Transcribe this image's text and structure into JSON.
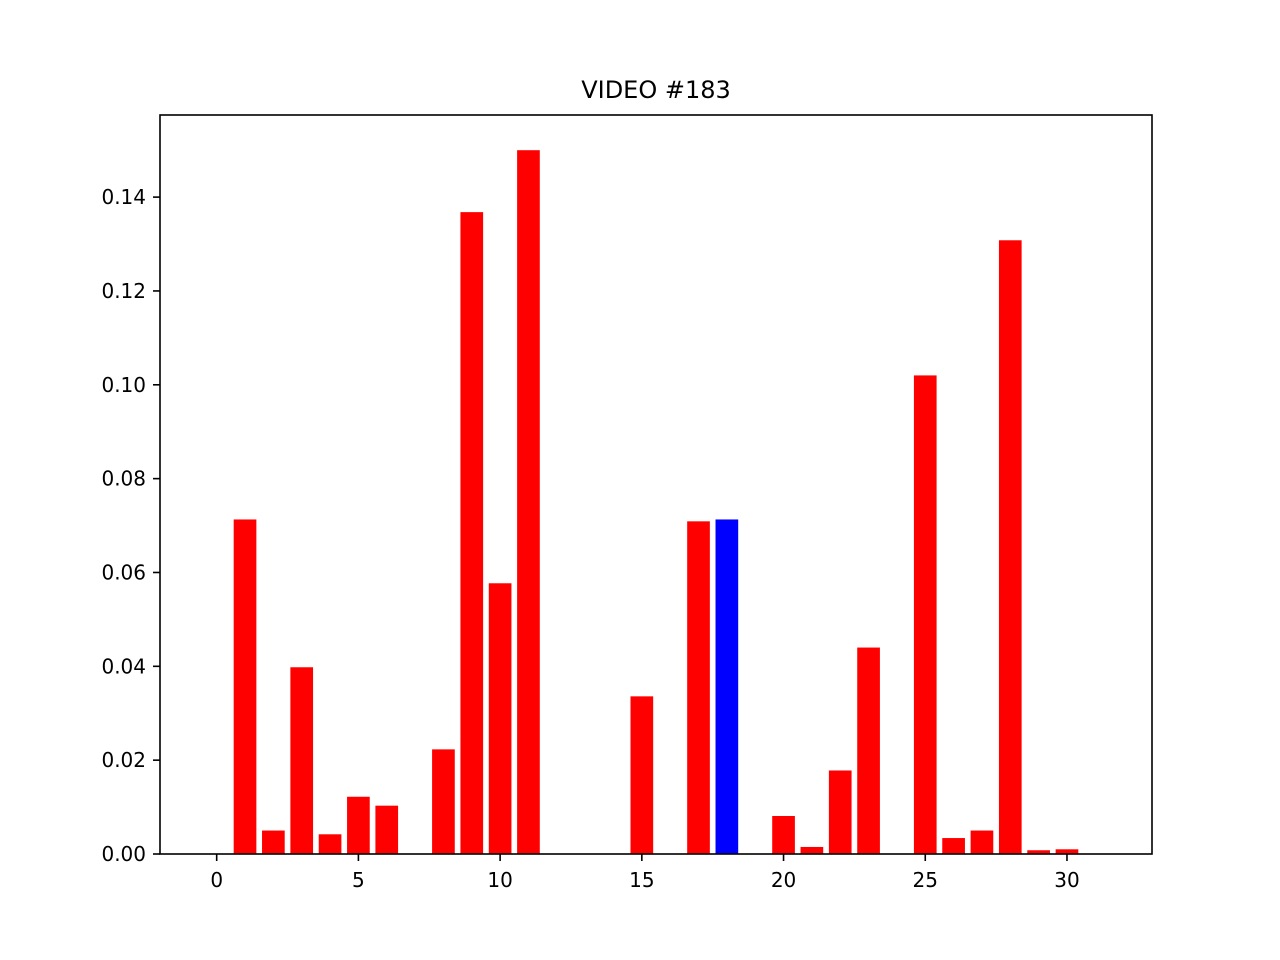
{
  "chart_data": {
    "type": "bar",
    "title": "VIDEO #183",
    "xlabel": "",
    "ylabel": "",
    "x": [
      0,
      1,
      2,
      3,
      4,
      5,
      6,
      7,
      8,
      9,
      10,
      11,
      12,
      13,
      14,
      15,
      16,
      17,
      18,
      19,
      20,
      21,
      22,
      23,
      24,
      25,
      26,
      27,
      28,
      29,
      30
    ],
    "values": [
      0.0,
      0.0713,
      0.005,
      0.0398,
      0.0042,
      0.0122,
      0.0103,
      0.0,
      0.0223,
      0.1368,
      0.0577,
      0.15,
      0.0,
      0.0,
      0.0,
      0.0336,
      0.0,
      0.0709,
      0.0713,
      0.0,
      0.0081,
      0.0015,
      0.0178,
      0.044,
      0.0,
      0.102,
      0.0034,
      0.005,
      0.1308,
      0.0008,
      0.001
    ],
    "highlight_index": 18,
    "colors": {
      "default": "#ff0000",
      "highlight": "#0000ff"
    },
    "xlim": [
      -2,
      33
    ],
    "ylim": [
      0,
      0.1575
    ],
    "xticks": [
      0,
      5,
      10,
      15,
      20,
      25,
      30
    ],
    "xtick_labels": [
      "0",
      "5",
      "10",
      "15",
      "20",
      "25",
      "30"
    ],
    "yticks": [
      0.0,
      0.02,
      0.04,
      0.06,
      0.08,
      0.1,
      0.12,
      0.14
    ],
    "ytick_labels": [
      "0.00",
      "0.02",
      "0.04",
      "0.06",
      "0.08",
      "0.10",
      "0.12",
      "0.14"
    ],
    "grid": false,
    "legend": "none"
  }
}
